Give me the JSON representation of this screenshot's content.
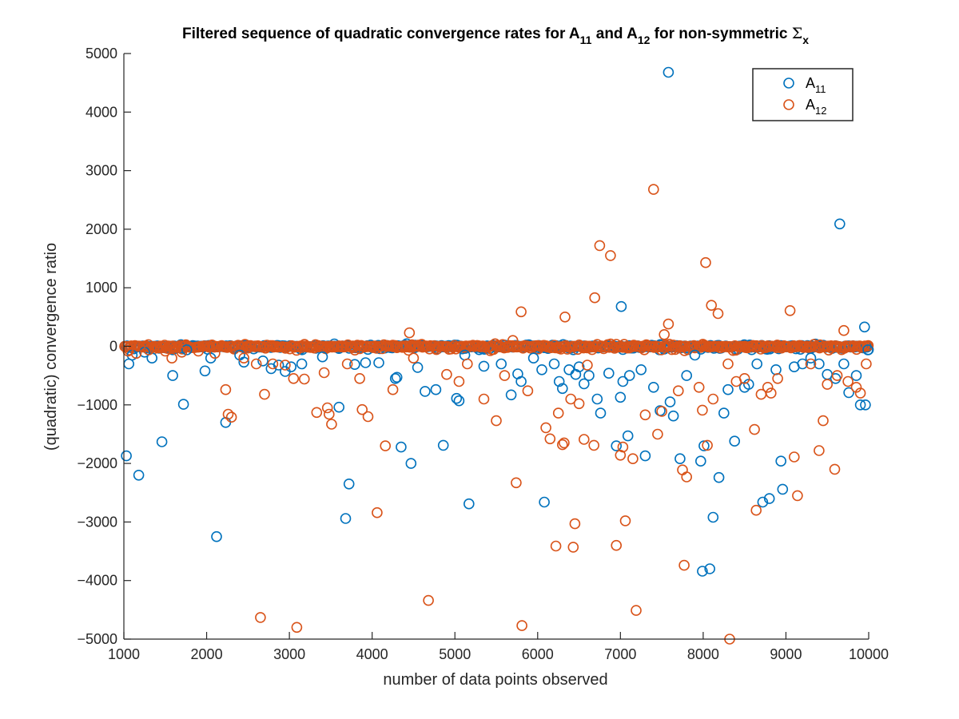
{
  "chart_data": {
    "type": "scatter",
    "title": {
      "prefix": "Filtered sequence of quadratic convergence rates for A",
      "sub1": "11",
      "mid": " and A",
      "sub2": "12",
      "suffix": " for non-symmetric ",
      "sigma": "Σ",
      "sigma_sub": "x"
    },
    "xlabel": "number of data points observed",
    "ylabel": "(quadratic) convergence ratio",
    "xlim": [
      1000,
      10000
    ],
    "ylim": [
      -5000,
      5000
    ],
    "xticks": [
      1000,
      2000,
      3000,
      4000,
      5000,
      6000,
      7000,
      8000,
      9000,
      10000
    ],
    "yticks": [
      -5000,
      -4000,
      -3000,
      -2000,
      -1000,
      0,
      1000,
      2000,
      3000,
      4000,
      5000
    ],
    "grid": false,
    "legend_position": "top-right",
    "series": [
      {
        "name": "A",
        "name_sub": "11",
        "color": "#0072bd",
        "points": [
          [
            1030,
            -1870
          ],
          [
            1060,
            -300
          ],
          [
            1100,
            -150
          ],
          [
            1180,
            -2200
          ],
          [
            1250,
            -100
          ],
          [
            1340,
            -200
          ],
          [
            1460,
            -1630
          ],
          [
            1590,
            -500
          ],
          [
            1720,
            -990
          ],
          [
            1760,
            -60
          ],
          [
            1980,
            -420
          ],
          [
            2050,
            -200
          ],
          [
            2120,
            -3250
          ],
          [
            2230,
            -1300
          ],
          [
            2400,
            -150
          ],
          [
            2450,
            -270
          ],
          [
            2680,
            -250
          ],
          [
            2780,
            -380
          ],
          [
            2870,
            -320
          ],
          [
            2950,
            -430
          ],
          [
            3020,
            -350
          ],
          [
            3150,
            -300
          ],
          [
            3400,
            -180
          ],
          [
            3600,
            -1040
          ],
          [
            3680,
            -2940
          ],
          [
            3720,
            -2350
          ],
          [
            3790,
            -310
          ],
          [
            3920,
            -280
          ],
          [
            4080,
            -280
          ],
          [
            4280,
            -550
          ],
          [
            4300,
            -530
          ],
          [
            4350,
            -1720
          ],
          [
            4470,
            -2000
          ],
          [
            4550,
            -360
          ],
          [
            4640,
            -770
          ],
          [
            4770,
            -740
          ],
          [
            4860,
            -1690
          ],
          [
            5020,
            -890
          ],
          [
            5050,
            -930
          ],
          [
            5120,
            -150
          ],
          [
            5170,
            -2690
          ],
          [
            5350,
            -340
          ],
          [
            5560,
            -300
          ],
          [
            5680,
            -830
          ],
          [
            5760,
            -470
          ],
          [
            5800,
            -600
          ],
          [
            5950,
            -200
          ],
          [
            6050,
            -400
          ],
          [
            6080,
            -2660
          ],
          [
            6200,
            -300
          ],
          [
            6260,
            -600
          ],
          [
            6300,
            -720
          ],
          [
            6380,
            -400
          ],
          [
            6460,
            -480
          ],
          [
            6500,
            -350
          ],
          [
            6560,
            -640
          ],
          [
            6620,
            -500
          ],
          [
            6720,
            -900
          ],
          [
            6760,
            -1140
          ],
          [
            6860,
            -460
          ],
          [
            6950,
            -1700
          ],
          [
            7000,
            -870
          ],
          [
            7010,
            680
          ],
          [
            7030,
            -600
          ],
          [
            7090,
            -1530
          ],
          [
            7110,
            -500
          ],
          [
            7250,
            -400
          ],
          [
            7300,
            -1870
          ],
          [
            7400,
            -700
          ],
          [
            7480,
            -1100
          ],
          [
            7580,
            4680
          ],
          [
            7600,
            -950
          ],
          [
            7640,
            -1190
          ],
          [
            7720,
            -1920
          ],
          [
            7800,
            -500
          ],
          [
            7900,
            -150
          ],
          [
            7970,
            -1960
          ],
          [
            7990,
            -3840
          ],
          [
            8010,
            -1700
          ],
          [
            8080,
            -3800
          ],
          [
            8120,
            -2920
          ],
          [
            8190,
            -2240
          ],
          [
            8250,
            -1140
          ],
          [
            8300,
            -740
          ],
          [
            8380,
            -1620
          ],
          [
            8500,
            -700
          ],
          [
            8550,
            -650
          ],
          [
            8650,
            -300
          ],
          [
            8720,
            -2660
          ],
          [
            8800,
            -2600
          ],
          [
            8880,
            -400
          ],
          [
            8940,
            -1960
          ],
          [
            8960,
            -2440
          ],
          [
            9100,
            -350
          ],
          [
            9200,
            -300
          ],
          [
            9300,
            -200
          ],
          [
            9400,
            -300
          ],
          [
            9500,
            -480
          ],
          [
            9600,
            -550
          ],
          [
            9650,
            2090
          ],
          [
            9700,
            -300
          ],
          [
            9760,
            -790
          ],
          [
            9850,
            -500
          ],
          [
            9900,
            -1000
          ],
          [
            9950,
            330
          ],
          [
            9960,
            -1000
          ],
          [
            9990,
            -60
          ]
        ]
      },
      {
        "name": "A",
        "name_sub": "12",
        "color": "#d95319",
        "points": [
          [
            1050,
            -80
          ],
          [
            1150,
            -120
          ],
          [
            1300,
            -60
          ],
          [
            1500,
            -80
          ],
          [
            1580,
            -200
          ],
          [
            1700,
            -100
          ],
          [
            1900,
            -80
          ],
          [
            2100,
            -120
          ],
          [
            2230,
            -740
          ],
          [
            2260,
            -1160
          ],
          [
            2300,
            -1210
          ],
          [
            2450,
            -200
          ],
          [
            2600,
            -300
          ],
          [
            2650,
            -4630
          ],
          [
            2700,
            -820
          ],
          [
            2800,
            -300
          ],
          [
            2950,
            -320
          ],
          [
            3050,
            -550
          ],
          [
            3090,
            -4800
          ],
          [
            3180,
            -560
          ],
          [
            3330,
            -1130
          ],
          [
            3420,
            -450
          ],
          [
            3460,
            -1050
          ],
          [
            3480,
            -1160
          ],
          [
            3510,
            -1330
          ],
          [
            3700,
            -300
          ],
          [
            3850,
            -550
          ],
          [
            3880,
            -1080
          ],
          [
            3950,
            -1200
          ],
          [
            4060,
            -2840
          ],
          [
            4160,
            -1700
          ],
          [
            4250,
            -740
          ],
          [
            4450,
            230
          ],
          [
            4500,
            -200
          ],
          [
            4680,
            -4340
          ],
          [
            4900,
            -480
          ],
          [
            5050,
            -600
          ],
          [
            5150,
            -300
          ],
          [
            5350,
            -900
          ],
          [
            5500,
            -1270
          ],
          [
            5600,
            -500
          ],
          [
            5700,
            100
          ],
          [
            5740,
            -2330
          ],
          [
            5800,
            590
          ],
          [
            5810,
            -4770
          ],
          [
            5880,
            -760
          ],
          [
            6100,
            -1390
          ],
          [
            6150,
            -1580
          ],
          [
            6220,
            -3410
          ],
          [
            6250,
            -1140
          ],
          [
            6300,
            -1680
          ],
          [
            6320,
            -1650
          ],
          [
            6330,
            500
          ],
          [
            6400,
            -900
          ],
          [
            6430,
            -3430
          ],
          [
            6450,
            -3030
          ],
          [
            6500,
            -980
          ],
          [
            6560,
            -1590
          ],
          [
            6600,
            -320
          ],
          [
            6680,
            -1690
          ],
          [
            6690,
            830
          ],
          [
            6750,
            1720
          ],
          [
            6880,
            1550
          ],
          [
            6950,
            -3400
          ],
          [
            7000,
            -1860
          ],
          [
            7030,
            -1720
          ],
          [
            7060,
            -2980
          ],
          [
            7150,
            -1920
          ],
          [
            7190,
            -4510
          ],
          [
            7300,
            -1170
          ],
          [
            7400,
            2680
          ],
          [
            7450,
            -1500
          ],
          [
            7500,
            -1110
          ],
          [
            7530,
            200
          ],
          [
            7580,
            380
          ],
          [
            7700,
            -760
          ],
          [
            7750,
            -2110
          ],
          [
            7770,
            -3740
          ],
          [
            7800,
            -2230
          ],
          [
            7950,
            -700
          ],
          [
            7990,
            -1090
          ],
          [
            8030,
            1430
          ],
          [
            8050,
            -1690
          ],
          [
            8100,
            700
          ],
          [
            8120,
            -900
          ],
          [
            8180,
            560
          ],
          [
            8300,
            -300
          ],
          [
            8320,
            -5000
          ],
          [
            8400,
            -600
          ],
          [
            8500,
            -550
          ],
          [
            8620,
            -1420
          ],
          [
            8640,
            -2800
          ],
          [
            8700,
            -820
          ],
          [
            8780,
            -700
          ],
          [
            8820,
            -800
          ],
          [
            8900,
            -550
          ],
          [
            9050,
            610
          ],
          [
            9100,
            -1890
          ],
          [
            9140,
            -2550
          ],
          [
            9300,
            -300
          ],
          [
            9400,
            -1780
          ],
          [
            9450,
            -1270
          ],
          [
            9500,
            -650
          ],
          [
            9590,
            -2100
          ],
          [
            9620,
            -500
          ],
          [
            9700,
            270
          ],
          [
            9750,
            -600
          ],
          [
            9850,
            -700
          ],
          [
            9900,
            -800
          ],
          [
            9970,
            -300
          ]
        ]
      }
    ]
  }
}
